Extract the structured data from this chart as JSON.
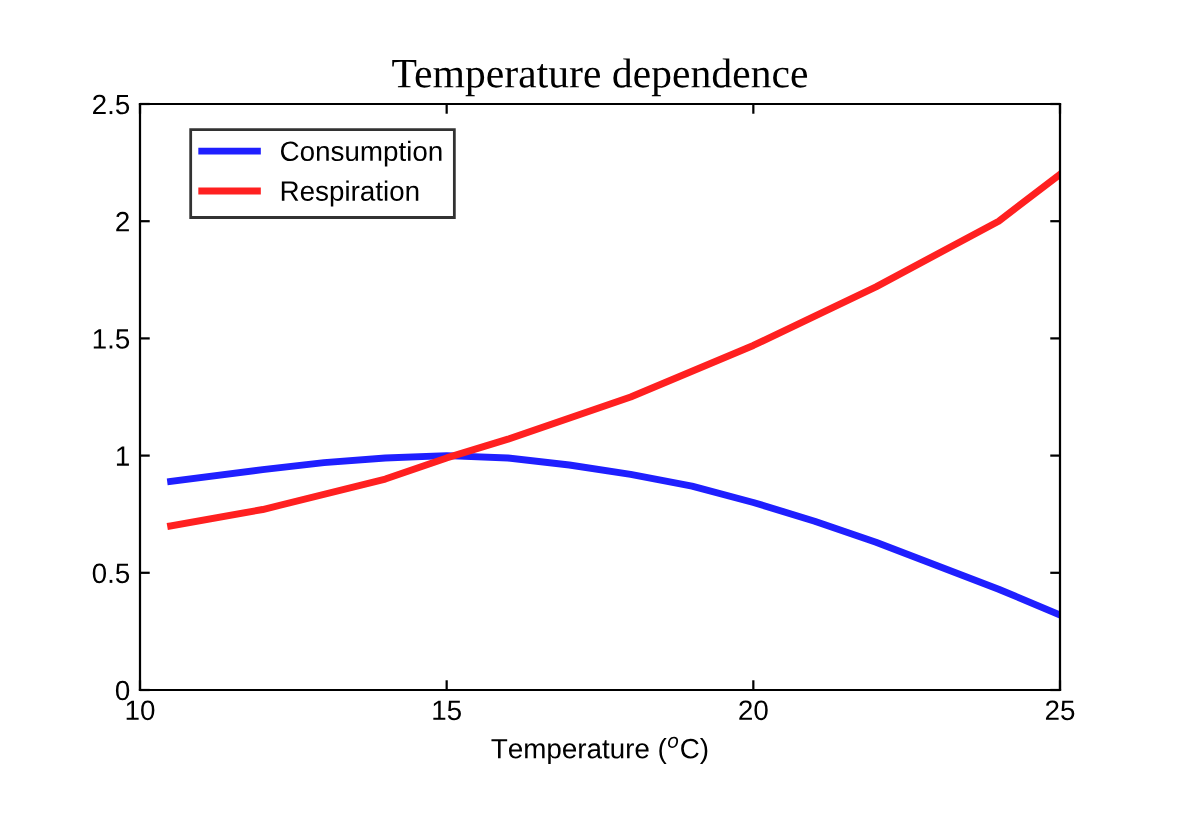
{
  "chart_data": {
    "type": "line",
    "title": "Temperature dependence",
    "xlabel": "Temperature ($^{o}$C)",
    "series": [
      {
        "name": "Consumption",
        "color": "#1f1fff",
        "x": [
          10.5,
          12,
          13,
          14,
          15,
          16,
          17,
          18,
          19,
          20,
          21,
          22,
          23,
          24,
          25
        ],
        "values": [
          0.89,
          0.94,
          0.97,
          0.99,
          1.0,
          0.99,
          0.96,
          0.92,
          0.87,
          0.8,
          0.72,
          0.63,
          0.53,
          0.43,
          0.32
        ]
      },
      {
        "name": "Respiration",
        "color": "#ff2020",
        "x": [
          10.5,
          12,
          14,
          15,
          16,
          18,
          20,
          22,
          24,
          25
        ],
        "values": [
          0.7,
          0.77,
          0.9,
          0.99,
          1.07,
          1.25,
          1.47,
          1.72,
          2.0,
          2.2
        ]
      }
    ],
    "xlim": [
      10,
      25
    ],
    "xticks": [
      10,
      15,
      20,
      25
    ],
    "ylim": [
      0,
      2.5
    ],
    "yticks": [
      0,
      0.5,
      1,
      1.5,
      2,
      2.5
    ],
    "legend": "top left",
    "grid": false,
    "marker": "none",
    "line_style": "solid"
  }
}
